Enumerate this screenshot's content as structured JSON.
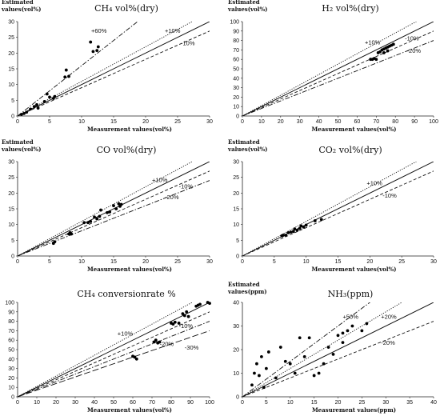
{
  "chart_data": [
    {
      "type": "scatter",
      "title": "CH₄ vol%(dry)",
      "ylabel": [
        "Estimated",
        "values(vol%)"
      ],
      "xlabel": "Measurement values(vol%)",
      "xlim": [
        0,
        30
      ],
      "ylim": [
        0,
        30
      ],
      "xticks": [
        0,
        5,
        10,
        15,
        20,
        25,
        30
      ],
      "yticks": [
        0,
        5,
        10,
        15,
        20,
        25,
        30
      ],
      "grid": false,
      "lines": [
        {
          "slope": 1.0,
          "style": "solid"
        },
        {
          "slope": 1.6,
          "style": "dashdot",
          "label": "+60%",
          "at": [
            11.5,
            26.5
          ]
        },
        {
          "slope": 1.1,
          "style": "dotted",
          "label": "+10%",
          "at": [
            23,
            26.5
          ]
        },
        {
          "slope": 0.9,
          "style": "dashed",
          "label": "-10%",
          "at": [
            25.5,
            22.5
          ]
        }
      ],
      "points": [
        [
          0.6,
          0.5
        ],
        [
          1,
          0.8
        ],
        [
          1.4,
          1.2
        ],
        [
          2,
          2.2
        ],
        [
          2.6,
          3
        ],
        [
          3,
          3.6
        ],
        [
          3.2,
          2.5
        ],
        [
          4.2,
          4.6
        ],
        [
          4.6,
          7
        ],
        [
          5,
          6
        ],
        [
          5.6,
          5.6
        ],
        [
          5.8,
          6.2
        ],
        [
          7.4,
          12.4
        ],
        [
          7.6,
          14.6
        ],
        [
          8,
          12.6
        ],
        [
          11.4,
          23.5
        ],
        [
          11.8,
          20.5
        ],
        [
          12.4,
          20.8
        ],
        [
          12.6,
          22
        ]
      ]
    },
    {
      "type": "scatter",
      "title": "H₂ vol%(dry)",
      "ylabel": [
        "Estimated",
        "values(vol%)"
      ],
      "xlabel": "Measurement values(vol%)",
      "xlim": [
        0,
        100
      ],
      "ylim": [
        0,
        100
      ],
      "xticks": [
        0,
        10,
        20,
        30,
        40,
        50,
        60,
        70,
        80,
        90,
        100
      ],
      "yticks": [
        0,
        10,
        20,
        30,
        40,
        50,
        60,
        70,
        80,
        90,
        100
      ],
      "grid": false,
      "lines": [
        {
          "slope": 1.0,
          "style": "solid"
        },
        {
          "slope": 1.1,
          "style": "dotted",
          "label": "+10%",
          "at": [
            64,
            76
          ]
        },
        {
          "slope": 0.9,
          "style": "dashed",
          "label": "-10%",
          "at": [
            85,
            80
          ]
        },
        {
          "slope": 0.8,
          "style": "dashdot",
          "label": "-20%",
          "at": [
            86,
            67
          ]
        }
      ],
      "points": [
        [
          67,
          60
        ],
        [
          68,
          60
        ],
        [
          69,
          61
        ],
        [
          70,
          60
        ],
        [
          71,
          67
        ],
        [
          72,
          68
        ],
        [
          73,
          70
        ],
        [
          74,
          71
        ],
        [
          74,
          67
        ],
        [
          75,
          72
        ],
        [
          76,
          73
        ],
        [
          77,
          74
        ],
        [
          78,
          75
        ],
        [
          79,
          76
        ],
        [
          76,
          69
        ]
      ]
    },
    {
      "type": "scatter",
      "title": "CO vol%(dry)",
      "ylabel": [
        "Estimated",
        "values(vol%)"
      ],
      "xlabel": "Measurement values(vol%)",
      "xlim": [
        0,
        30
      ],
      "ylim": [
        0,
        30
      ],
      "xticks": [
        0,
        5,
        10,
        15,
        20,
        25,
        30
      ],
      "yticks": [
        0,
        5,
        10,
        15,
        20,
        25,
        30
      ],
      "grid": false,
      "lines": [
        {
          "slope": 1.0,
          "style": "solid"
        },
        {
          "slope": 1.1,
          "style": "dotted",
          "label": "+10%",
          "at": [
            21,
            23.5
          ]
        },
        {
          "slope": 0.9,
          "style": "dashed",
          "label": "-10%",
          "at": [
            25.2,
            21.5
          ]
        },
        {
          "slope": 0.8,
          "style": "dashdot",
          "label": "-20%",
          "at": [
            23,
            18
          ]
        }
      ],
      "points": [
        [
          5.6,
          4
        ],
        [
          5.8,
          4.5
        ],
        [
          8,
          7
        ],
        [
          8.2,
          7.4
        ],
        [
          8.4,
          7
        ],
        [
          10.4,
          10.6
        ],
        [
          11,
          10.6
        ],
        [
          11.4,
          11
        ],
        [
          12,
          12.4
        ],
        [
          12.4,
          11.8
        ],
        [
          12.8,
          12.6
        ],
        [
          13,
          14.6
        ],
        [
          14,
          13.8
        ],
        [
          14.4,
          14
        ],
        [
          15,
          16
        ],
        [
          15.4,
          15
        ],
        [
          15.8,
          16.6
        ],
        [
          16,
          15.8
        ],
        [
          16.2,
          16.4
        ]
      ]
    },
    {
      "type": "scatter",
      "title": "CO₂ vol%(dry)",
      "ylabel": [
        "Estimated",
        "values(vol%)"
      ],
      "xlabel": "Measurement values(vol%)",
      "xlim": [
        0,
        30
      ],
      "ylim": [
        0,
        30
      ],
      "xticks": [
        0,
        5,
        10,
        15,
        20,
        25,
        30
      ],
      "yticks": [
        0,
        5,
        10,
        15,
        20,
        25,
        30
      ],
      "grid": false,
      "lines": [
        {
          "slope": 1.0,
          "style": "solid"
        },
        {
          "slope": 1.1,
          "style": "dotted",
          "label": "+10%",
          "at": [
            19.5,
            22.5
          ]
        },
        {
          "slope": 0.9,
          "style": "dashed",
          "label": "-10%",
          "at": [
            22,
            18.5
          ]
        }
      ],
      "points": [
        [
          6.2,
          6.4
        ],
        [
          6.4,
          6.6
        ],
        [
          6.8,
          6.6
        ],
        [
          7.2,
          7.4
        ],
        [
          7.6,
          7.6
        ],
        [
          8,
          7.8
        ],
        [
          8.2,
          8.6
        ],
        [
          8.6,
          8.2
        ],
        [
          9,
          8.8
        ],
        [
          9.2,
          9.6
        ],
        [
          9.6,
          9.2
        ],
        [
          10,
          9.8
        ],
        [
          11.4,
          11.2
        ],
        [
          12.4,
          11.6
        ]
      ]
    },
    {
      "type": "scatter",
      "title": "CH₄ conversionrate  %",
      "ylabel": [],
      "xlabel": "Measurement values(vol%)",
      "xlim": [
        0,
        100
      ],
      "ylim": [
        0,
        100
      ],
      "xticks": [
        0,
        10,
        20,
        30,
        40,
        50,
        60,
        70,
        80,
        90,
        100
      ],
      "yticks": [
        0,
        10,
        20,
        30,
        40,
        50,
        60,
        70,
        80,
        90,
        100
      ],
      "grid": false,
      "lines": [
        {
          "slope": 1.0,
          "style": "solid"
        },
        {
          "slope": 1.1,
          "style": "dotted",
          "label": "+10%",
          "at": [
            52,
            65
          ]
        },
        {
          "slope": 0.9,
          "style": "dashed",
          "label": "-10%",
          "at": [
            84,
            73
          ]
        },
        {
          "slope": 0.8,
          "style": "dashdot",
          "label": "-20%",
          "at": [
            74,
            54
          ]
        },
        {
          "slope": 0.7,
          "style": "longdash",
          "label": "-30%",
          "at": [
            87,
            50
          ]
        }
      ],
      "points": [
        [
          60,
          43
        ],
        [
          61,
          42
        ],
        [
          62,
          40
        ],
        [
          71,
          58
        ],
        [
          72,
          60
        ],
        [
          73,
          57
        ],
        [
          74,
          58
        ],
        [
          80,
          78
        ],
        [
          81,
          77
        ],
        [
          82,
          79
        ],
        [
          84,
          78
        ],
        [
          86,
          88
        ],
        [
          87,
          86
        ],
        [
          88,
          90
        ],
        [
          89,
          85
        ],
        [
          93,
          96
        ],
        [
          94,
          97
        ],
        [
          95,
          98
        ],
        [
          99,
          100
        ],
        [
          100,
          99
        ]
      ]
    },
    {
      "type": "scatter",
      "title": "NH₃(ppm)",
      "ylabel": [
        "Estimated",
        "values(ppm)"
      ],
      "xlabel": "Measurement values(ppm)",
      "xlim": [
        0,
        40
      ],
      "ylim": [
        0,
        40
      ],
      "xticks": [
        0,
        5,
        10,
        15,
        20,
        25,
        30,
        35,
        40
      ],
      "yticks": [
        0,
        10,
        20,
        30,
        40
      ],
      "grid": false,
      "lines": [
        {
          "slope": 1.0,
          "style": "solid"
        },
        {
          "slope": 1.5,
          "style": "dashdot",
          "label": "+50%",
          "at": [
            21,
            33
          ]
        },
        {
          "slope": 1.2,
          "style": "dotted",
          "label": "+20%",
          "at": [
            29,
            33
          ]
        },
        {
          "slope": 0.8,
          "style": "dashed",
          "label": "-20%",
          "at": [
            29,
            22
          ]
        }
      ],
      "points": [
        [
          2,
          5
        ],
        [
          2.5,
          10
        ],
        [
          3,
          14
        ],
        [
          4,
          17
        ],
        [
          3.5,
          9
        ],
        [
          4.5,
          4
        ],
        [
          5,
          12
        ],
        [
          5.5,
          19
        ],
        [
          7,
          8
        ],
        [
          8,
          21
        ],
        [
          9,
          15
        ],
        [
          10,
          14
        ],
        [
          11,
          10
        ],
        [
          12,
          25
        ],
        [
          13,
          17
        ],
        [
          14,
          25
        ],
        [
          15,
          9
        ],
        [
          16,
          10
        ],
        [
          17,
          14
        ],
        [
          18,
          21
        ],
        [
          19,
          18
        ],
        [
          20,
          26
        ],
        [
          21,
          27
        ],
        [
          21,
          23
        ],
        [
          22,
          28
        ],
        [
          23,
          30
        ],
        [
          25,
          28
        ],
        [
          26,
          31
        ]
      ]
    }
  ]
}
